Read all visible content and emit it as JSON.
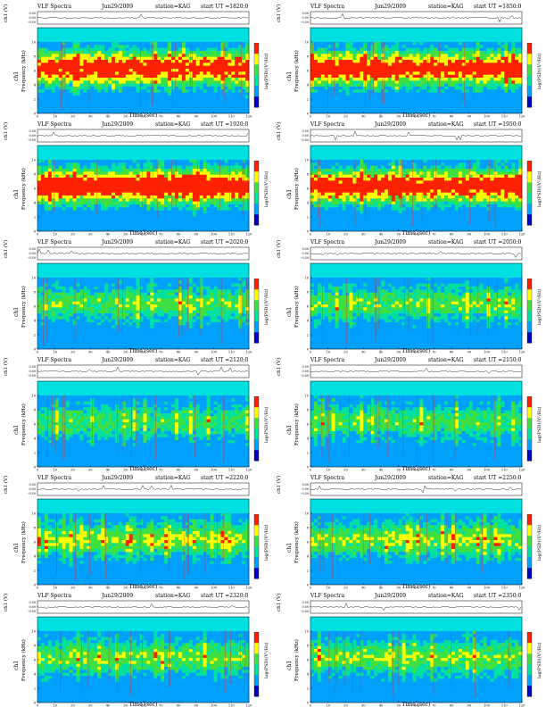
{
  "panel_header": {
    "title": "VLF Spectra",
    "station": "station=KAG",
    "start_prefix": "start  UT =",
    "ylabel_top": "ch1 (V)",
    "ylabel_freq_1": "ch1",
    "ylabel_freq_2": "Frequency (kHz)",
    "xlabel": "Time (sec)",
    "colorbar_label": "log(PSD)(V²/Hz)"
  },
  "chart_data": [
    {
      "type": "heatmap",
      "date": "Jun29/2009",
      "start_ut": "1820:0",
      "intensity": 0.85,
      "seed": 11
    },
    {
      "type": "heatmap",
      "date": "Jun29/2009",
      "start_ut": "1850:0",
      "intensity": 0.85,
      "seed": 12
    },
    {
      "type": "heatmap",
      "date": "Jun29/2009",
      "start_ut": "1920:0",
      "intensity": 0.92,
      "seed": 13
    },
    {
      "type": "heatmap",
      "date": "Jun29/2009",
      "start_ut": "1950:0",
      "intensity": 0.88,
      "seed": 14
    },
    {
      "type": "heatmap",
      "date": "Jun29/2009",
      "start_ut": "2020:0",
      "intensity": 0.45,
      "seed": 15
    },
    {
      "type": "heatmap",
      "date": "Jun29/2009",
      "start_ut": "2050:0",
      "intensity": 0.45,
      "seed": 16
    },
    {
      "type": "heatmap",
      "date": "Jun29/2009",
      "start_ut": "2120:0",
      "intensity": 0.4,
      "seed": 17
    },
    {
      "type": "heatmap",
      "date": "Jun29/2009",
      "start_ut": "2150:0",
      "intensity": 0.42,
      "seed": 18
    },
    {
      "type": "heatmap",
      "date": "Jun29/2009",
      "start_ut": "2220:0",
      "intensity": 0.5,
      "seed": 19
    },
    {
      "type": "heatmap",
      "date": "Jun29/2009",
      "start_ut": "2250:0",
      "intensity": 0.5,
      "seed": 20
    },
    {
      "type": "heatmap",
      "date": "Jun29/2009",
      "start_ut": "2320:0",
      "intensity": 0.48,
      "seed": 21
    },
    {
      "type": "heatmap",
      "date": "Jun29/2009",
      "start_ut": "2350:0",
      "intensity": 0.48,
      "seed": 22
    }
  ],
  "axes": {
    "x_ticks": [
      "0",
      "10",
      "20",
      "30",
      "40",
      "50",
      "60",
      "70",
      "80",
      "90",
      "100",
      "110",
      "120"
    ],
    "xlim": [
      0,
      120
    ],
    "y_ticks": [
      "0",
      "2",
      "4",
      "6",
      "8",
      "10"
    ],
    "ylim": [
      0,
      12
    ],
    "top_ticks": [
      "0.50",
      "0.00",
      "-0.50"
    ],
    "colorbar_ticks": [
      "-",
      "-"
    ]
  },
  "colors": {
    "background_band": "#00e0e0",
    "low": "#00a0ff",
    "mid_low": "#00e0a0",
    "mid": "#40e040",
    "mid_high": "#ffff00",
    "high": "#ff2000",
    "low_edge": "#0000c0"
  }
}
